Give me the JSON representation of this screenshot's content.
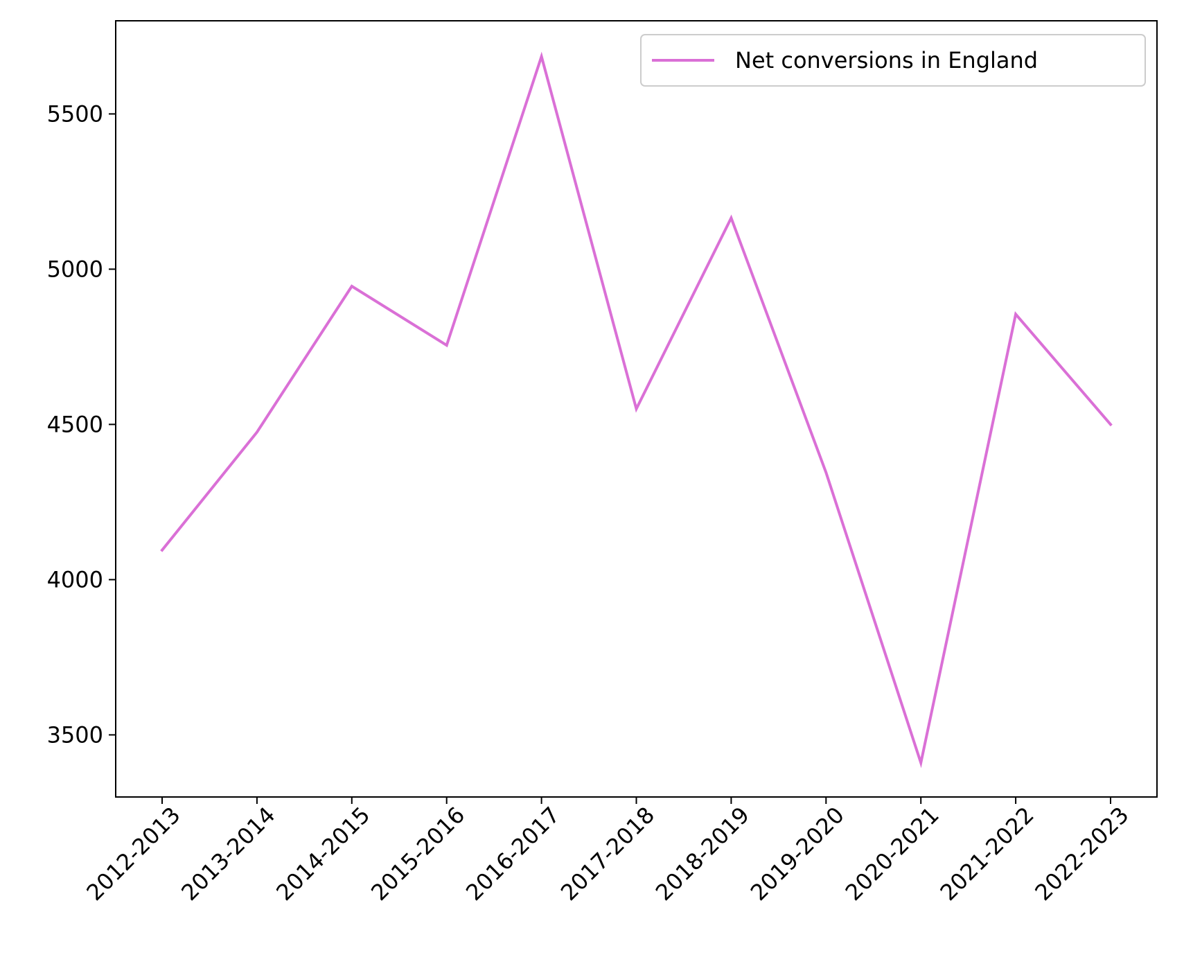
{
  "chart_data": {
    "type": "line",
    "title": "",
    "xlabel": "",
    "ylabel": "",
    "categories": [
      "2012-2013",
      "2013-2014",
      "2014-2015",
      "2015-2016",
      "2016-2017",
      "2017-2018",
      "2018-2019",
      "2019-2020",
      "2020-2021",
      "2021-2022",
      "2022-2023"
    ],
    "series": [
      {
        "name": "Net conversions in England",
        "color": "#da70d6",
        "values": [
          4095,
          4475,
          4945,
          4755,
          5685,
          4550,
          5165,
          4345,
          3410,
          4855,
          4500
        ]
      }
    ],
    "ylim": [
      3300,
      5800
    ],
    "yticks": [
      3500,
      4000,
      4500,
      5000,
      5500
    ],
    "grid": false,
    "legend_position": "upper-right"
  }
}
